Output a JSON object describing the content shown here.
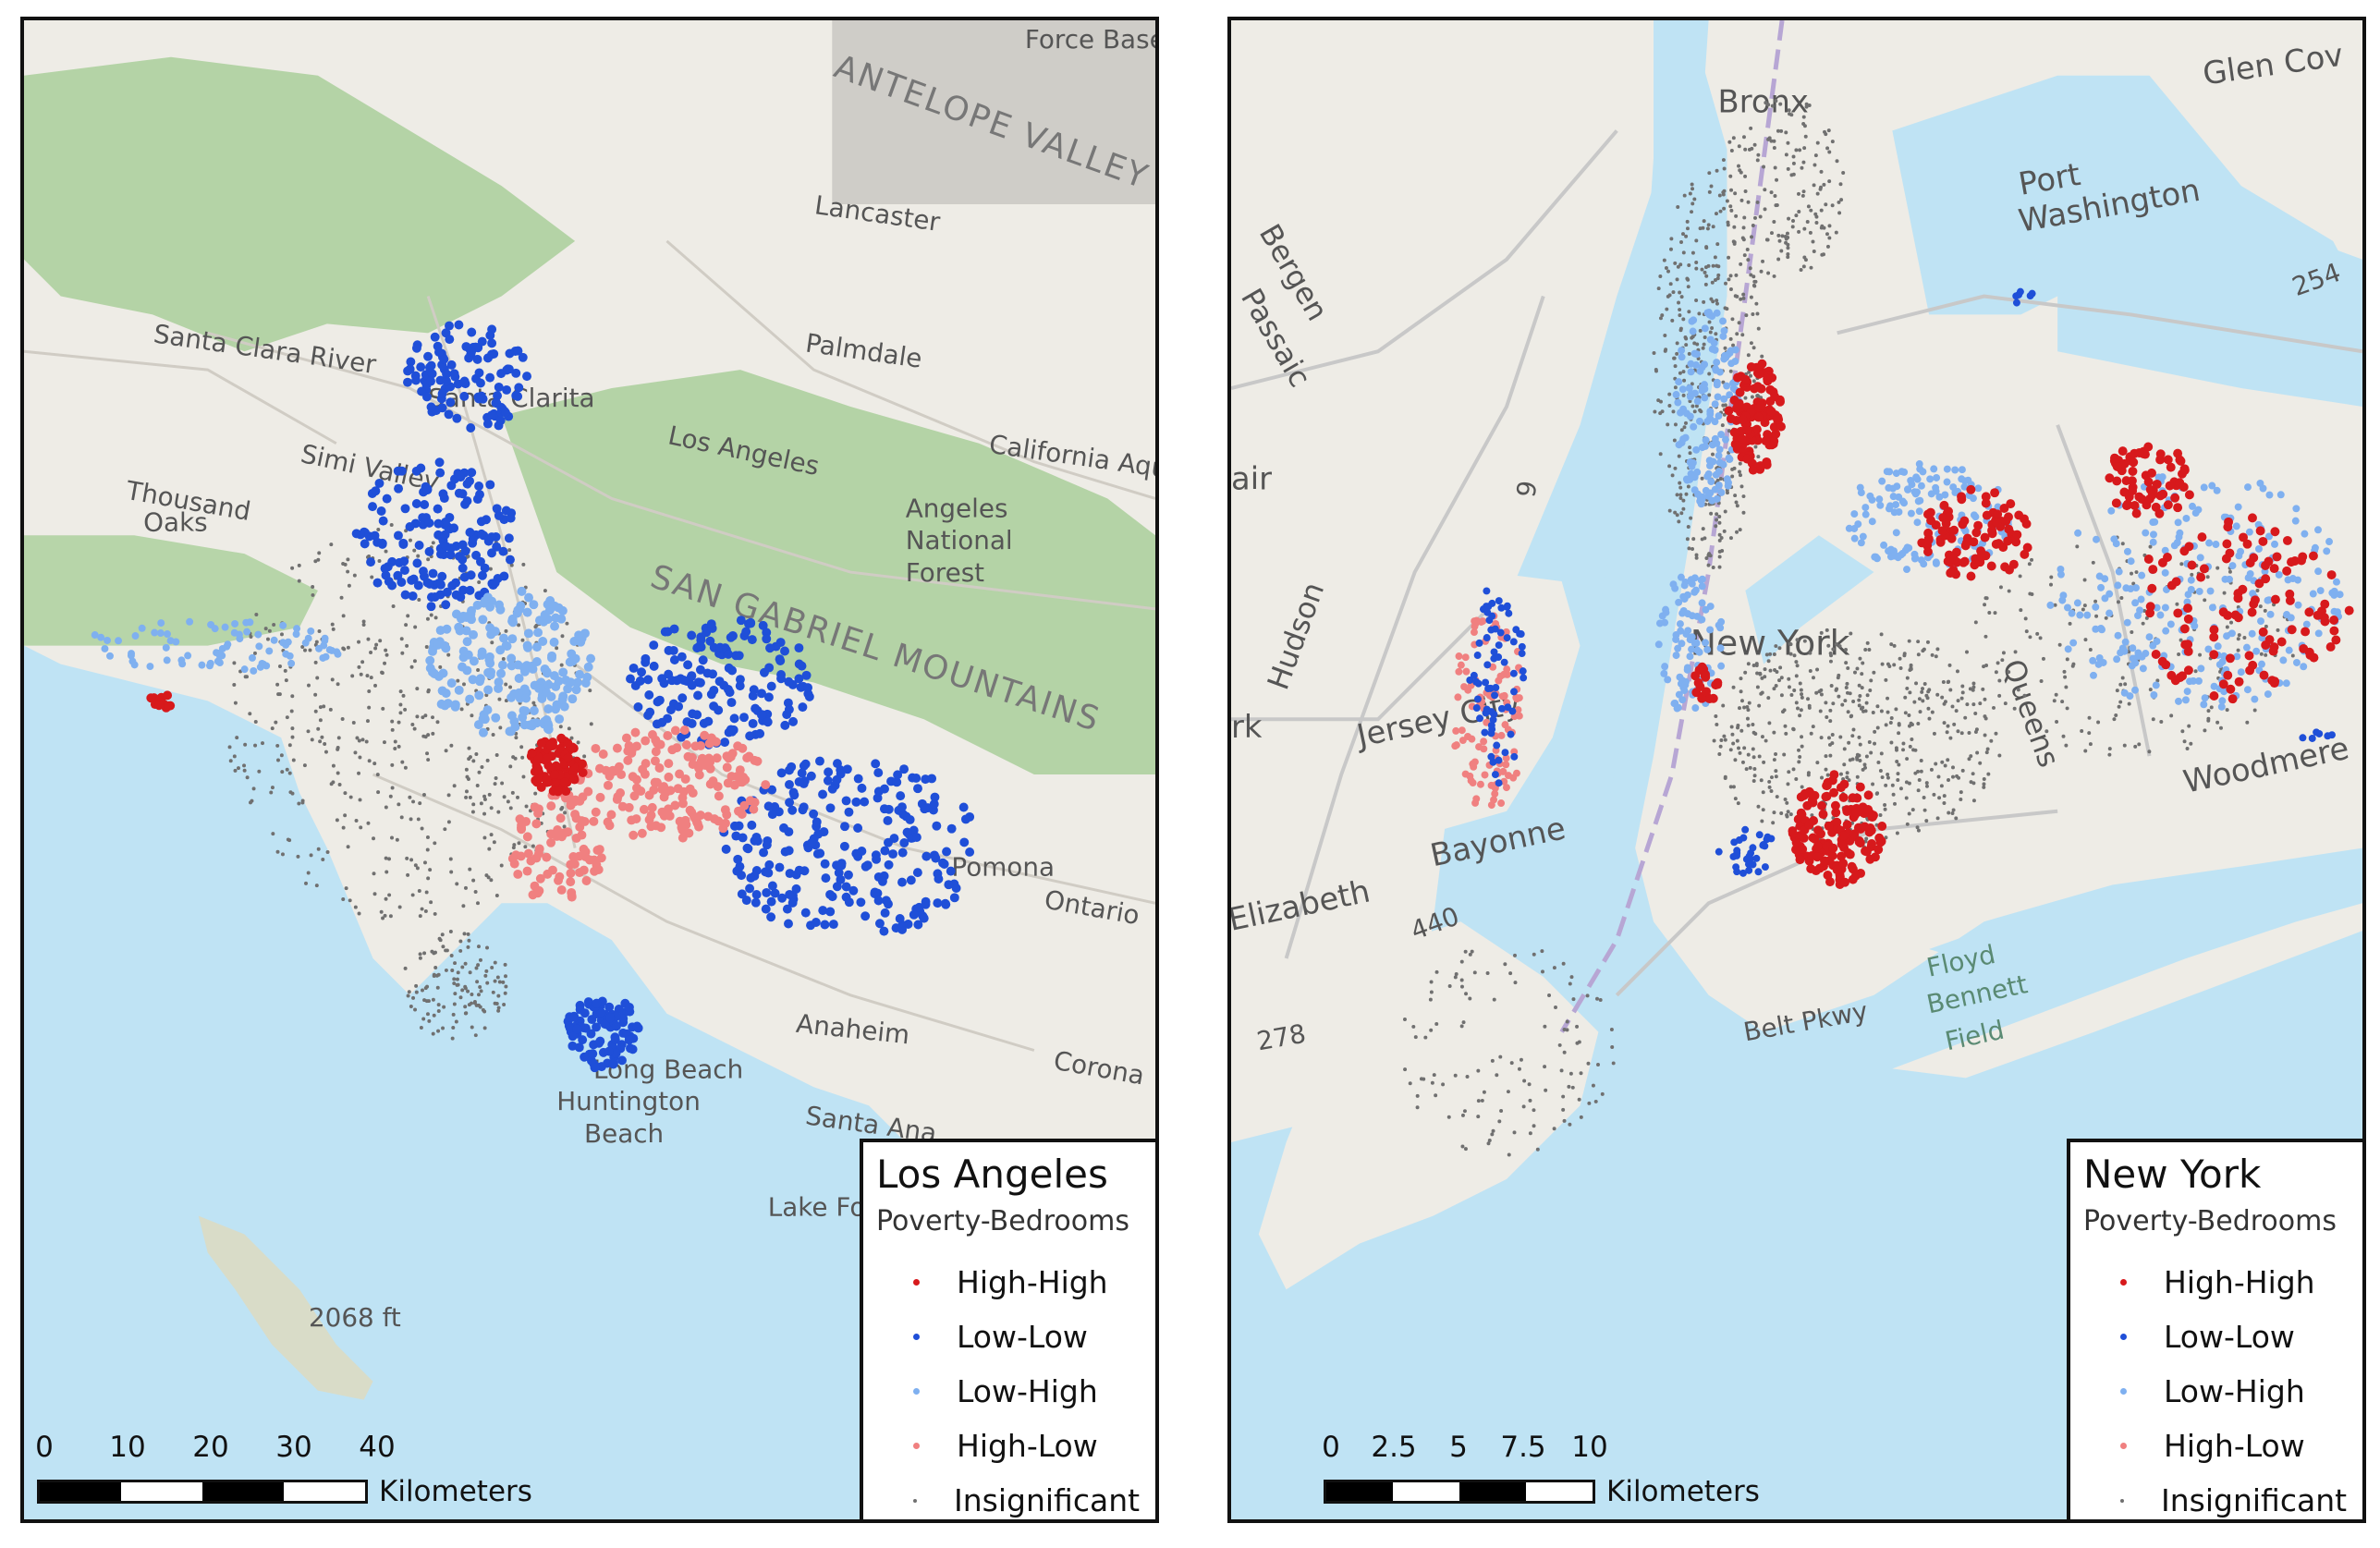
{
  "colors": {
    "high_high": "#d7191c",
    "low_low": "#1f4fd8",
    "low_high": "#7fb0f0",
    "high_low": "#f08080",
    "insignificant": "#707070",
    "water": "#bfe3f4",
    "land": "#eeece6",
    "mountain": "#a9cf9a",
    "road": "#c8c8c8"
  },
  "legend_categories": [
    "High-High",
    "Low-Low",
    "Low-High",
    "High-Low",
    "Insignificant"
  ],
  "maps": [
    {
      "title": "Los Angeles",
      "subtitle": "Poverty-Bedrooms",
      "scale_ticks": [
        "0",
        "10",
        "20",
        "30",
        "40"
      ],
      "scale_unit": "Kilometers",
      "place_labels": [
        "ANTELOPE VALLEY",
        "Lancaster",
        "Palmdale",
        "Santa Clarita",
        "Simi Valley",
        "Thousand Oaks",
        "Los Angeles",
        "SAN GABRIEL MOUNTAINS",
        "Angeles National Forest",
        "Pomona",
        "Ontario",
        "Anaheim",
        "Santa Ana",
        "Huntington Beach",
        "Long Beach",
        "Corona",
        "Lake Forest",
        "Santa Clara River",
        "California Aqueduct",
        "2068 ft",
        "Force Base"
      ]
    },
    {
      "title": "New York",
      "subtitle": "Poverty-Bedrooms",
      "scale_ticks": [
        "0",
        "2.5",
        "5",
        "7.5",
        "10"
      ],
      "scale_unit": "Kilometers",
      "place_labels": [
        "Bronx",
        "Port Washington",
        "Glen Cove",
        "Bergen",
        "Passaic",
        "Hudson",
        "Jersey City",
        "Bayonne",
        "Elizabeth",
        "New York",
        "Queens",
        "Woodmere",
        "Floyd Bennett Field",
        "Newark",
        "254",
        "278",
        "440",
        "9",
        "Belt Pkwy"
      ]
    }
  ]
}
